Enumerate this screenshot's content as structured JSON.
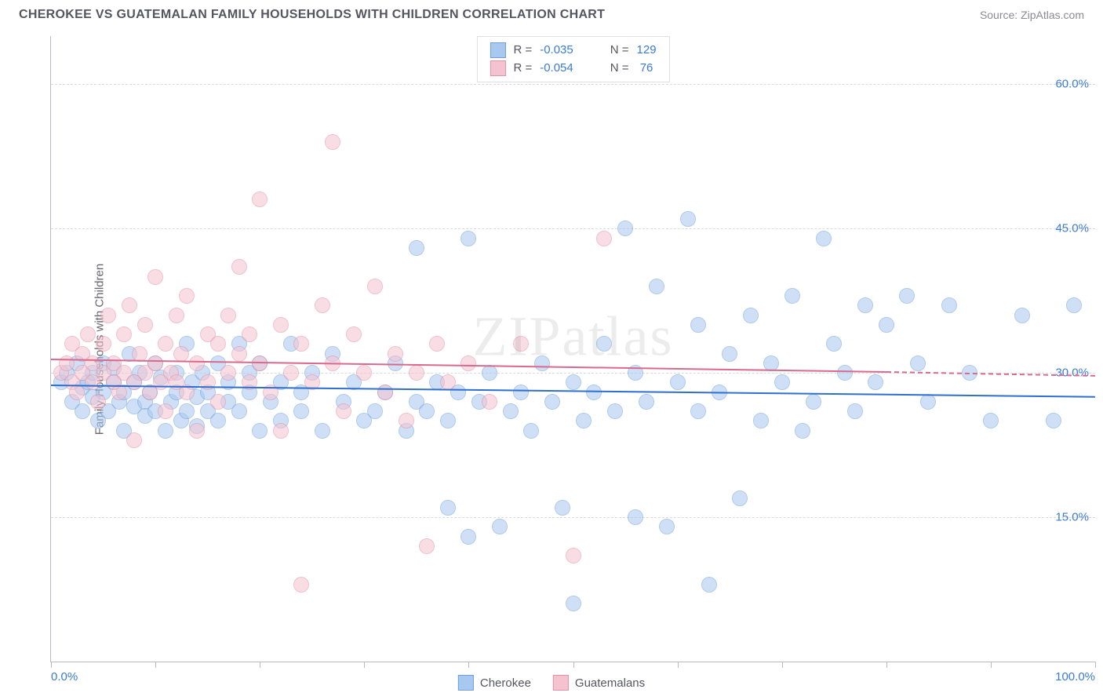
{
  "title": "CHEROKEE VS GUATEMALAN FAMILY HOUSEHOLDS WITH CHILDREN CORRELATION CHART",
  "source": "Source: ZipAtlas.com",
  "watermark": "ZIPatlas",
  "chart": {
    "type": "scatter",
    "ylabel": "Family Households with Children",
    "xlim": [
      0,
      100
    ],
    "ylim": [
      0,
      65
    ],
    "x_ticks": [
      0,
      10,
      20,
      30,
      40,
      50,
      60,
      70,
      80,
      90,
      100
    ],
    "x_tick_labels": {
      "0": "0.0%",
      "100": "100.0%"
    },
    "y_gridlines": [
      15,
      30,
      45,
      60
    ],
    "y_tick_labels": {
      "15": "15.0%",
      "30": "30.0%",
      "45": "45.0%",
      "60": "60.0%"
    },
    "background_color": "#ffffff",
    "grid_color": "#d9d9e0",
    "axis_color": "#b9b9c2",
    "marker_radius": 10,
    "marker_opacity": 0.55,
    "series": [
      {
        "name": "Cherokee",
        "fill": "#a9c8f0",
        "stroke": "#6fa0de",
        "trend_color": "#2f6fd0",
        "R": "-0.035",
        "N": "129",
        "trend": {
          "x1": 0,
          "y1": 28.8,
          "x2": 100,
          "y2": 27.6
        },
        "points": [
          [
            1,
            29
          ],
          [
            1.5,
            30
          ],
          [
            2,
            27
          ],
          [
            2.5,
            31
          ],
          [
            3,
            28.5
          ],
          [
            3,
            26
          ],
          [
            3.5,
            29
          ],
          [
            4,
            30
          ],
          [
            4,
            27.5
          ],
          [
            4.5,
            25
          ],
          [
            5,
            28
          ],
          [
            5,
            31
          ],
          [
            5.5,
            26
          ],
          [
            6,
            29
          ],
          [
            6,
            30.5
          ],
          [
            6.5,
            27
          ],
          [
            7,
            28
          ],
          [
            7,
            24
          ],
          [
            7.5,
            32
          ],
          [
            8,
            26.5
          ],
          [
            8,
            29
          ],
          [
            8.5,
            30
          ],
          [
            9,
            27
          ],
          [
            9,
            25.5
          ],
          [
            9.5,
            28
          ],
          [
            10,
            31
          ],
          [
            10,
            26
          ],
          [
            10.5,
            29.5
          ],
          [
            11,
            24
          ],
          [
            11.5,
            27
          ],
          [
            12,
            30
          ],
          [
            12,
            28
          ],
          [
            12.5,
            25
          ],
          [
            13,
            33
          ],
          [
            13,
            26
          ],
          [
            13.5,
            29
          ],
          [
            14,
            27.5
          ],
          [
            14,
            24.5
          ],
          [
            14.5,
            30
          ],
          [
            15,
            28
          ],
          [
            15,
            26
          ],
          [
            16,
            31
          ],
          [
            16,
            25
          ],
          [
            17,
            29
          ],
          [
            17,
            27
          ],
          [
            18,
            33
          ],
          [
            18,
            26
          ],
          [
            19,
            28
          ],
          [
            19,
            30
          ],
          [
            20,
            24
          ],
          [
            20,
            31
          ],
          [
            21,
            27
          ],
          [
            22,
            29
          ],
          [
            22,
            25
          ],
          [
            23,
            33
          ],
          [
            24,
            26
          ],
          [
            24,
            28
          ],
          [
            25,
            30
          ],
          [
            26,
            24
          ],
          [
            27,
            32
          ],
          [
            28,
            27
          ],
          [
            29,
            29
          ],
          [
            30,
            25
          ],
          [
            31,
            26
          ],
          [
            32,
            28
          ],
          [
            33,
            31
          ],
          [
            34,
            24
          ],
          [
            35,
            27
          ],
          [
            35,
            43
          ],
          [
            36,
            26
          ],
          [
            37,
            29
          ],
          [
            38,
            16
          ],
          [
            38,
            25
          ],
          [
            39,
            28
          ],
          [
            40,
            44
          ],
          [
            40,
            13
          ],
          [
            41,
            27
          ],
          [
            42,
            30
          ],
          [
            43,
            14
          ],
          [
            44,
            26
          ],
          [
            45,
            28
          ],
          [
            46,
            24
          ],
          [
            47,
            31
          ],
          [
            48,
            27
          ],
          [
            49,
            16
          ],
          [
            50,
            29
          ],
          [
            50,
            6
          ],
          [
            51,
            25
          ],
          [
            52,
            28
          ],
          [
            53,
            33
          ],
          [
            54,
            26
          ],
          [
            55,
            45
          ],
          [
            56,
            15
          ],
          [
            56,
            30
          ],
          [
            57,
            27
          ],
          [
            58,
            39
          ],
          [
            59,
            14
          ],
          [
            60,
            29
          ],
          [
            61,
            46
          ],
          [
            62,
            26
          ],
          [
            62,
            35
          ],
          [
            63,
            8
          ],
          [
            64,
            28
          ],
          [
            65,
            32
          ],
          [
            66,
            17
          ],
          [
            67,
            36
          ],
          [
            68,
            25
          ],
          [
            69,
            31
          ],
          [
            70,
            29
          ],
          [
            71,
            38
          ],
          [
            72,
            24
          ],
          [
            73,
            27
          ],
          [
            74,
            44
          ],
          [
            75,
            33
          ],
          [
            76,
            30
          ],
          [
            77,
            26
          ],
          [
            78,
            37
          ],
          [
            79,
            29
          ],
          [
            80,
            35
          ],
          [
            82,
            38
          ],
          [
            83,
            31
          ],
          [
            84,
            27
          ],
          [
            86,
            37
          ],
          [
            88,
            30
          ],
          [
            90,
            25
          ],
          [
            93,
            36
          ],
          [
            96,
            25
          ],
          [
            98,
            37
          ]
        ]
      },
      {
        "name": "Guatemalans",
        "fill": "#f4c3cf",
        "stroke": "#e690a6",
        "trend_color": "#d96a8c",
        "R": "-0.054",
        "N": "76",
        "trend": {
          "x1": 0,
          "y1": 31.5,
          "x2": 80,
          "y2": 30.2,
          "dash_to": 100,
          "dash_y": 29.8
        },
        "points": [
          [
            1,
            30
          ],
          [
            1.5,
            31
          ],
          [
            2,
            29
          ],
          [
            2,
            33
          ],
          [
            2.5,
            28
          ],
          [
            3,
            32
          ],
          [
            3,
            30
          ],
          [
            3.5,
            34
          ],
          [
            4,
            29
          ],
          [
            4,
            31
          ],
          [
            4.5,
            27
          ],
          [
            5,
            33
          ],
          [
            5,
            30
          ],
          [
            5.5,
            36
          ],
          [
            6,
            29
          ],
          [
            6,
            31
          ],
          [
            6.5,
            28
          ],
          [
            7,
            34
          ],
          [
            7,
            30
          ],
          [
            7.5,
            37
          ],
          [
            8,
            29
          ],
          [
            8,
            23
          ],
          [
            8.5,
            32
          ],
          [
            9,
            30
          ],
          [
            9,
            35
          ],
          [
            9.5,
            28
          ],
          [
            10,
            31
          ],
          [
            10,
            40
          ],
          [
            10.5,
            29
          ],
          [
            11,
            33
          ],
          [
            11,
            26
          ],
          [
            11.5,
            30
          ],
          [
            12,
            36
          ],
          [
            12,
            29
          ],
          [
            12.5,
            32
          ],
          [
            13,
            28
          ],
          [
            13,
            38
          ],
          [
            14,
            31
          ],
          [
            14,
            24
          ],
          [
            15,
            34
          ],
          [
            15,
            29
          ],
          [
            16,
            33
          ],
          [
            16,
            27
          ],
          [
            17,
            36
          ],
          [
            17,
            30
          ],
          [
            18,
            32
          ],
          [
            18,
            41
          ],
          [
            19,
            29
          ],
          [
            19,
            34
          ],
          [
            20,
            31
          ],
          [
            20,
            48
          ],
          [
            21,
            28
          ],
          [
            22,
            35
          ],
          [
            22,
            24
          ],
          [
            23,
            30
          ],
          [
            24,
            33
          ],
          [
            24,
            8
          ],
          [
            25,
            29
          ],
          [
            26,
            37
          ],
          [
            27,
            31
          ],
          [
            27,
            54
          ],
          [
            28,
            26
          ],
          [
            29,
            34
          ],
          [
            30,
            30
          ],
          [
            31,
            39
          ],
          [
            32,
            28
          ],
          [
            33,
            32
          ],
          [
            34,
            25
          ],
          [
            35,
            30
          ],
          [
            36,
            12
          ],
          [
            37,
            33
          ],
          [
            38,
            29
          ],
          [
            40,
            31
          ],
          [
            42,
            27
          ],
          [
            45,
            33
          ],
          [
            50,
            11
          ],
          [
            53,
            44
          ]
        ]
      }
    ],
    "legend_bottom": [
      {
        "label": "Cherokee",
        "fill": "#a9c8f0",
        "stroke": "#6fa0de"
      },
      {
        "label": "Guatemalans",
        "fill": "#f4c3cf",
        "stroke": "#e690a6"
      }
    ]
  }
}
